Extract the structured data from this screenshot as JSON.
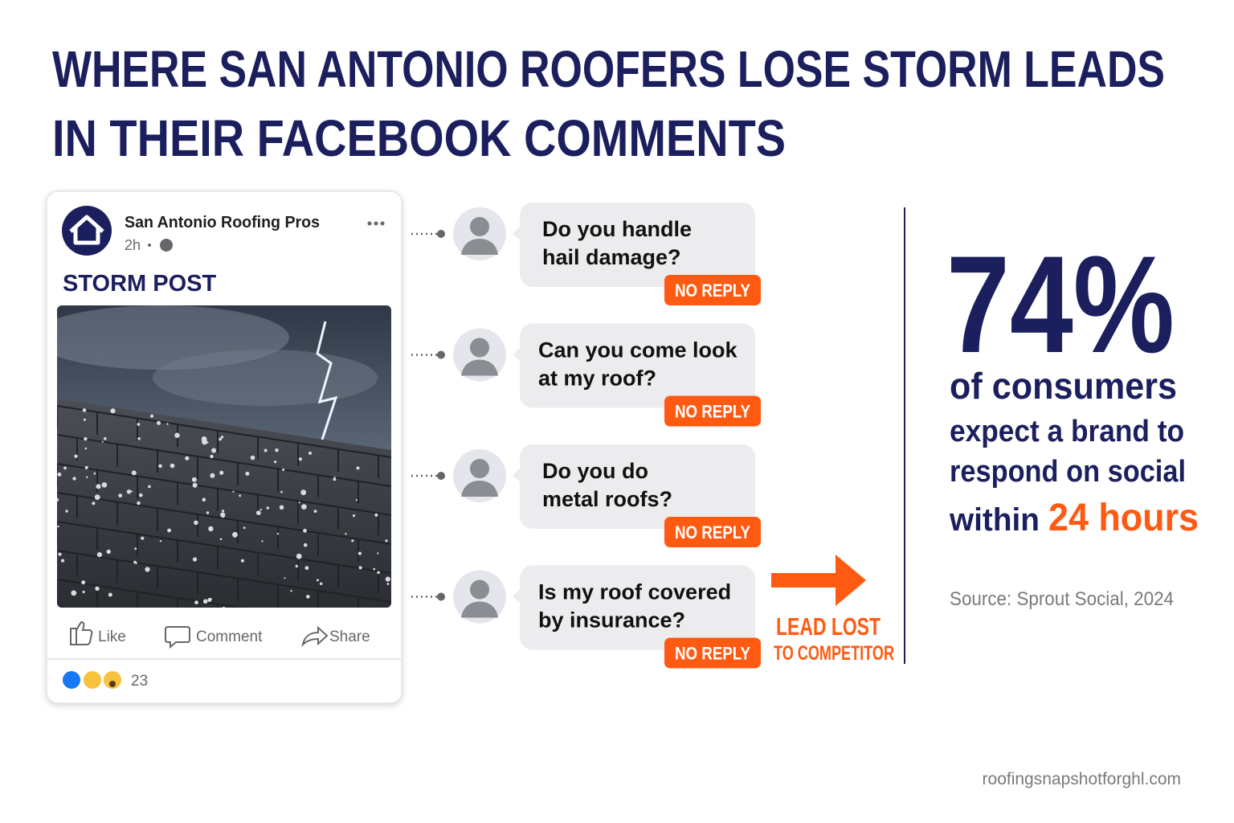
{
  "header": {
    "title_lines": [
      "WHERE SAN ANTONIO ROOFERS LOSE STORM LEADS",
      "IN THEIR FACEBOOK COMMENTS"
    ]
  },
  "post": {
    "page_name": "San Antonio Roofing Pros",
    "time": "2h",
    "label": "STORM POST",
    "actions": [
      "Like",
      "Comment",
      "Share"
    ],
    "reaction_count": "23"
  },
  "comments": [
    {
      "lines": [
        "Do you handle",
        "hail damage?"
      ],
      "status": "NO REPLY"
    },
    {
      "lines": [
        "Can you come look",
        "at my roof?"
      ],
      "status": "NO REPLY"
    },
    {
      "lines": [
        "Do you do",
        "metal roofs?"
      ],
      "status": "NO REPLY"
    },
    {
      "lines": [
        "Is my roof covered",
        "by insurance?"
      ],
      "status": "NO REPLY"
    }
  ],
  "outcome": {
    "lines": [
      "LEAD LOST",
      "TO COMPETITOR"
    ]
  },
  "stat": {
    "value": "74%",
    "lines": [
      "of consumers",
      "expect a brand to",
      "respond on social"
    ],
    "last_line": {
      "prefix": "within",
      "highlight": "24 hours"
    },
    "source": "Source: Sprout Social, 2024"
  },
  "footer": {
    "url": "roofingsnapshotforghl.com"
  }
}
